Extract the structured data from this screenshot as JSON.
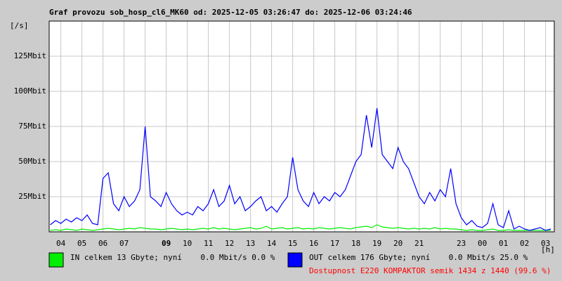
{
  "chart_data": {
    "type": "line",
    "title": "Graf provozu sob_hosp_cl6_MK60 od: 2025-12-05 03:26:47 do: 2025-12-06 03:24:46",
    "y_unit": "[/s]",
    "x_unit": "[h]",
    "xlim": [
      0.446,
      24.413
    ],
    "xticks": [
      {
        "value": 1,
        "label": "04"
      },
      {
        "value": 2,
        "label": "05"
      },
      {
        "value": 3,
        "label": "06"
      },
      {
        "value": 4,
        "label": "07"
      },
      {
        "value": 5,
        "label": null
      },
      {
        "value": 6,
        "label": "09",
        "bold": true
      },
      {
        "value": 7,
        "label": "10"
      },
      {
        "value": 8,
        "label": "11"
      },
      {
        "value": 9,
        "label": "12"
      },
      {
        "value": 10,
        "label": "13"
      },
      {
        "value": 11,
        "label": "14"
      },
      {
        "value": 12,
        "label": "15"
      },
      {
        "value": 13,
        "label": "16"
      },
      {
        "value": 14,
        "label": "17"
      },
      {
        "value": 15,
        "label": "18"
      },
      {
        "value": 16,
        "label": "19"
      },
      {
        "value": 17,
        "label": "20"
      },
      {
        "value": 18,
        "label": "21"
      },
      {
        "value": 19,
        "label": null
      },
      {
        "value": 20,
        "label": "23"
      },
      {
        "value": 21,
        "label": "00"
      },
      {
        "value": 22,
        "label": "01"
      },
      {
        "value": 23,
        "label": "02"
      },
      {
        "value": 24,
        "label": "03"
      }
    ],
    "ylim": [
      0,
      150
    ],
    "yticks": [
      {
        "value": 25,
        "label": "25Mbit"
      },
      {
        "value": 50,
        "label": "50Mbit"
      },
      {
        "value": 75,
        "label": "75Mbit"
      },
      {
        "value": 100,
        "label": "100Mbit"
      },
      {
        "value": 125,
        "label": "125Mbit"
      }
    ],
    "grid": true,
    "x": [
      0.5,
      0.75,
      1,
      1.25,
      1.5,
      1.75,
      2,
      2.25,
      2.5,
      2.75,
      3,
      3.25,
      3.5,
      3.75,
      4,
      4.25,
      4.5,
      4.75,
      5,
      5.25,
      5.5,
      5.75,
      6,
      6.25,
      6.5,
      6.75,
      7,
      7.25,
      7.5,
      7.75,
      8,
      8.25,
      8.5,
      8.75,
      9,
      9.25,
      9.5,
      9.75,
      10,
      10.25,
      10.5,
      10.75,
      11,
      11.25,
      11.5,
      11.75,
      12,
      12.25,
      12.5,
      12.75,
      13,
      13.25,
      13.5,
      13.75,
      14,
      14.25,
      14.5,
      14.75,
      15,
      15.25,
      15.5,
      15.75,
      16,
      16.25,
      16.5,
      16.75,
      17,
      17.25,
      17.5,
      17.75,
      18,
      18.25,
      18.5,
      18.75,
      19,
      19.25,
      19.5,
      19.75,
      20,
      20.25,
      20.5,
      20.75,
      21,
      21.25,
      21.5,
      21.75,
      22,
      22.25,
      22.5,
      22.75,
      23,
      23.25,
      23.5,
      23.75,
      24,
      24.25
    ],
    "series": [
      {
        "name": "IN celkem 13 Gbyte; nyní    0.0 Mbit/s 0.0 %",
        "color": "#00ee00",
        "values": [
          1,
          1.5,
          1,
          2,
          1.5,
          1,
          2,
          1.5,
          1,
          1.5,
          2,
          2.5,
          2,
          1.5,
          2,
          2.5,
          2,
          3,
          2.5,
          2,
          2,
          1.5,
          2,
          2.5,
          2,
          1.5,
          2,
          1.5,
          2,
          2.5,
          2,
          3,
          2,
          2.5,
          2,
          1.5,
          2,
          2.5,
          3,
          2,
          2.5,
          4,
          2,
          2.5,
          3,
          2,
          2.5,
          3,
          2,
          2.5,
          2,
          3,
          2.5,
          2,
          2.5,
          3,
          2.5,
          2,
          3,
          3.5,
          4,
          3,
          5,
          3.5,
          3,
          2.5,
          3,
          2.5,
          2,
          2.5,
          2,
          2.5,
          2,
          3,
          2,
          2.5,
          2,
          2,
          1.5,
          1,
          1.5,
          1,
          1,
          1.5,
          2,
          1,
          1,
          1.5,
          1,
          1,
          1,
          1,
          1,
          1,
          1,
          1
        ]
      },
      {
        "name": "OUT celkem 176 Gbyte; nyní    0.0 Mbit/s 25.0 %",
        "color": "#0000ff",
        "values": [
          5,
          8,
          6,
          9,
          7,
          10,
          8,
          12,
          6,
          5,
          38,
          42,
          20,
          15,
          25,
          18,
          22,
          30,
          75,
          25,
          22,
          18,
          28,
          20,
          15,
          12,
          14,
          12,
          18,
          15,
          20,
          30,
          18,
          22,
          33,
          20,
          25,
          15,
          18,
          22,
          25,
          15,
          18,
          14,
          20,
          25,
          53,
          30,
          22,
          18,
          28,
          20,
          25,
          22,
          28,
          25,
          30,
          40,
          50,
          55,
          83,
          60,
          88,
          55,
          50,
          45,
          60,
          50,
          45,
          35,
          25,
          20,
          28,
          22,
          30,
          25,
          45,
          20,
          10,
          5,
          8,
          4,
          3,
          6,
          20,
          5,
          3,
          15,
          2,
          4,
          2,
          1,
          2,
          3,
          1,
          2
        ]
      }
    ],
    "footer": "Dostupnost E220 KOMPAKTOR semik 1434 z 1440 (99.6 %)"
  }
}
